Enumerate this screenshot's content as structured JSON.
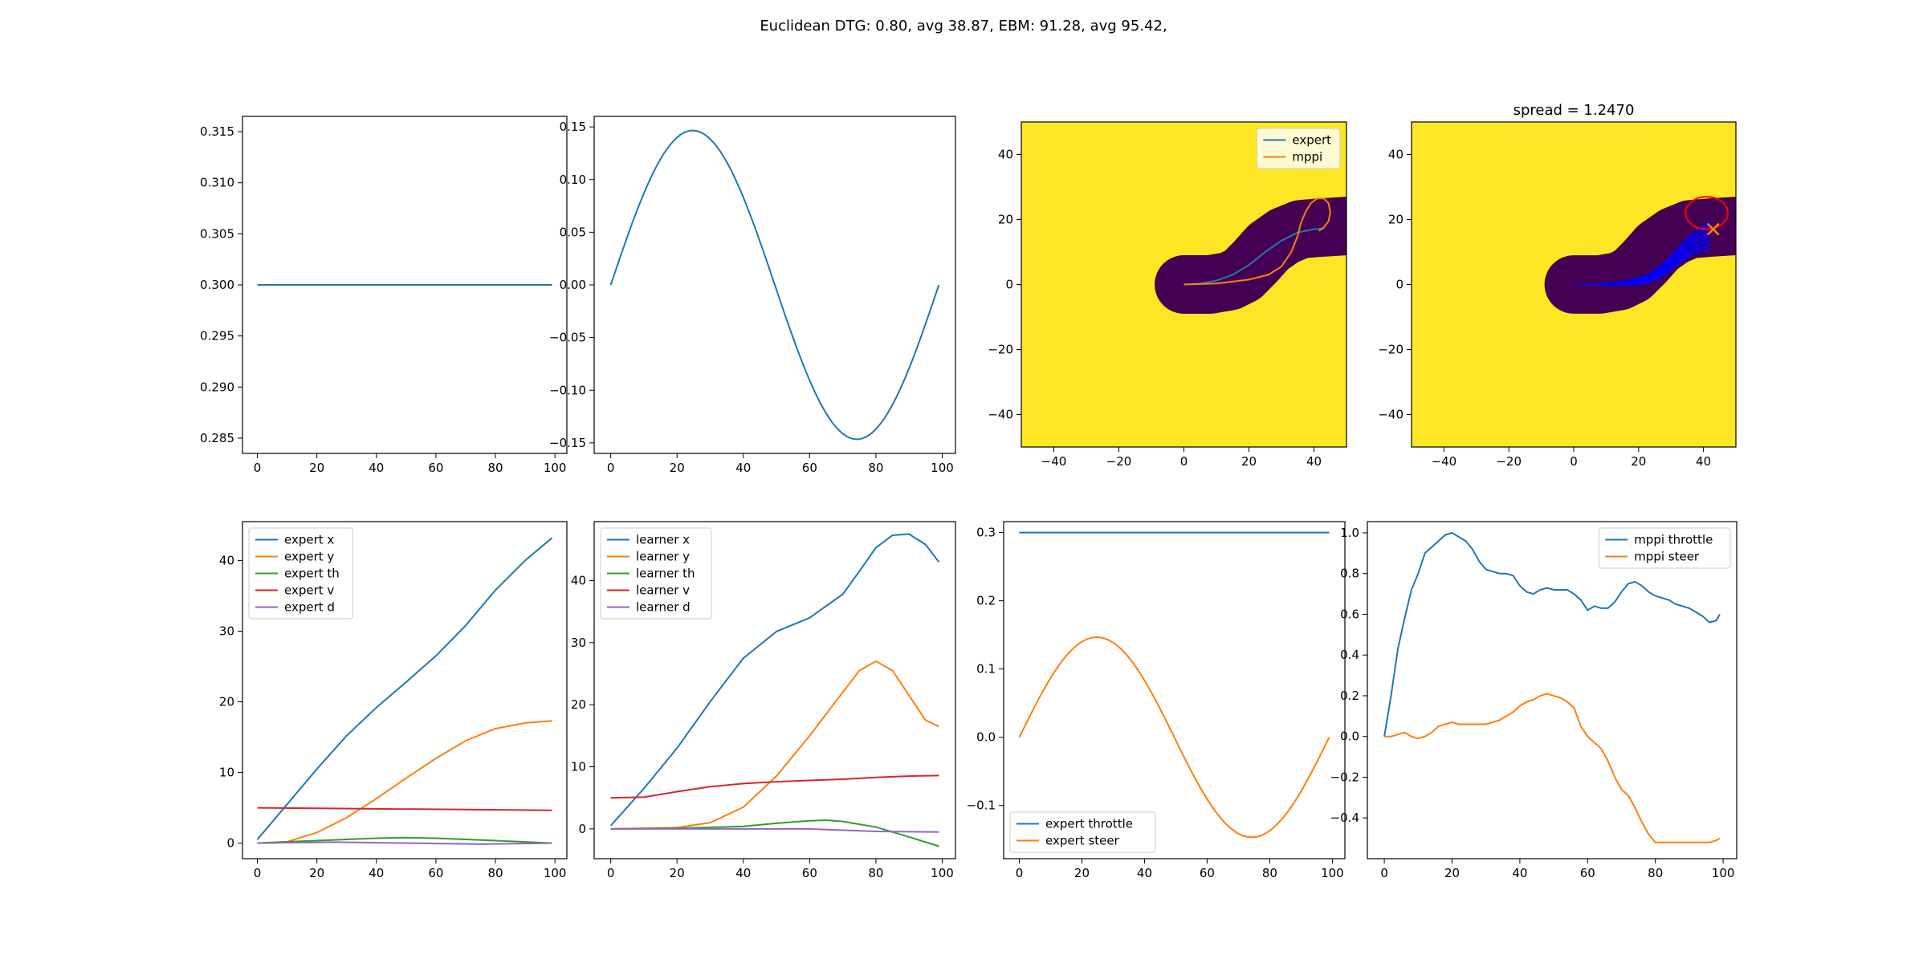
{
  "suptitle": "Euclidean DTG: 0.80, avg 38.87, EBM: 91.28, avg 95.42,",
  "colors": {
    "blue": "#1f77b4",
    "orange": "#ff7f0e",
    "green": "#2ca02c",
    "red": "#d62728",
    "purple": "#9467bd",
    "map_free": "#440154",
    "map_obstacle": "#fde725",
    "samples": "#0000ff",
    "ellipse": "#ff0000",
    "marker": "#ff7f0e"
  },
  "chart_data": [
    {
      "type": "line",
      "xlim": [
        -5,
        104
      ],
      "ylim": [
        0.2835,
        0.3165
      ],
      "xticks": [
        0,
        20,
        40,
        60,
        80,
        100
      ],
      "yticks": [
        0.285,
        0.29,
        0.295,
        0.3,
        0.305,
        0.31,
        0.315
      ],
      "ytick_labels": [
        "0.285",
        "0.290",
        "0.295",
        "0.300",
        "0.305",
        "0.310",
        "0.315"
      ],
      "series": [
        {
          "color": "blue",
          "x": [
            0,
            99
          ],
          "y": [
            0.3,
            0.3
          ]
        }
      ]
    },
    {
      "type": "line",
      "xlim": [
        -5,
        104
      ],
      "ylim": [
        -0.16,
        0.16
      ],
      "xticks": [
        0,
        20,
        40,
        60,
        80,
        100
      ],
      "yticks": [
        -0.15,
        -0.1,
        -0.05,
        0,
        0.05,
        0.1,
        0.15
      ],
      "ytick_labels": [
        "−0.15",
        "−0.10",
        "−0.05",
        "0.00",
        "0.05",
        "0.10",
        "0.15"
      ],
      "series": [
        {
          "color": "blue",
          "func": "sine",
          "amp": 0.1466,
          "n": 100
        }
      ]
    },
    {
      "type": "map",
      "xlim": [
        -50,
        50
      ],
      "ylim": [
        -50,
        50
      ],
      "xticks": [
        -40,
        -20,
        0,
        20,
        40
      ],
      "yticks": [
        -40,
        -20,
        0,
        20,
        40
      ],
      "legend": {
        "position": "upper right",
        "entries": [
          {
            "label": "expert",
            "color": "blue"
          },
          {
            "label": "mppi",
            "color": "orange"
          }
        ]
      },
      "series": [
        {
          "name": "expert",
          "color": "blue",
          "x": [
            0,
            5,
            10,
            15,
            20,
            25,
            30,
            35,
            40,
            43
          ],
          "y": [
            0,
            0.3,
            1.2,
            3,
            6,
            10,
            13.5,
            16,
            17,
            17.3
          ]
        },
        {
          "name": "mppi",
          "color": "orange",
          "x": [
            0,
            10,
            20,
            26,
            30,
            33,
            35,
            36,
            37.5,
            39,
            41,
            43,
            44.5,
            45,
            44.5,
            43,
            41.5
          ],
          "y": [
            0,
            0.3,
            1.5,
            3,
            5.5,
            10,
            15,
            19,
            22.5,
            25,
            26.5,
            26.5,
            25,
            22,
            19.5,
            17.5,
            16.5
          ]
        }
      ]
    },
    {
      "type": "map",
      "title": "spread = 1.2470",
      "xlim": [
        -50,
        50
      ],
      "ylim": [
        -50,
        50
      ],
      "xticks": [
        -40,
        -20,
        0,
        20,
        40
      ],
      "yticks": [
        -40,
        -20,
        0,
        20,
        40
      ],
      "marker": {
        "x": 43,
        "y": 17
      },
      "ellipse": {
        "cx": 41,
        "cy": 22,
        "rx": 6.5,
        "ry": 5
      },
      "samples": {
        "count": 40
      }
    },
    {
      "type": "line",
      "xlim": [
        -5,
        104
      ],
      "ylim": [
        -2.2,
        45.5
      ],
      "xticks": [
        0,
        20,
        40,
        60,
        80,
        100
      ],
      "yticks": [
        0,
        10,
        20,
        30,
        40
      ],
      "legend": {
        "position": "upper left",
        "entries": [
          {
            "label": "expert x",
            "color": "blue"
          },
          {
            "label": "expert y",
            "color": "orange"
          },
          {
            "label": "expert th",
            "color": "green"
          },
          {
            "label": "expert v",
            "color": "red"
          },
          {
            "label": "expert d",
            "color": "purple"
          }
        ]
      },
      "series": [
        {
          "name": "expert x",
          "color": "blue",
          "x": [
            0,
            10,
            20,
            30,
            40,
            50,
            60,
            70,
            80,
            90,
            99
          ],
          "y": [
            0.5,
            5.5,
            10.5,
            15.2,
            19.2,
            22.8,
            26.5,
            30.8,
            35.8,
            40,
            43.2
          ]
        },
        {
          "name": "expert y",
          "color": "orange",
          "x": [
            0,
            10,
            20,
            30,
            40,
            50,
            60,
            70,
            80,
            90,
            99
          ],
          "y": [
            0,
            0.2,
            1.5,
            3.6,
            6.3,
            9.2,
            12,
            14.5,
            16.2,
            17,
            17.3
          ]
        },
        {
          "name": "expert th",
          "color": "green",
          "x": [
            0,
            20,
            40,
            50,
            60,
            80,
            99
          ],
          "y": [
            0,
            0.35,
            0.7,
            0.78,
            0.7,
            0.35,
            0
          ]
        },
        {
          "name": "expert v",
          "color": "red",
          "x": [
            0,
            99
          ],
          "y": [
            5,
            4.65
          ]
        },
        {
          "name": "expert d",
          "color": "purple",
          "x": [
            0,
            25,
            50,
            75,
            99
          ],
          "y": [
            0,
            0.14,
            0,
            -0.14,
            0
          ]
        }
      ]
    },
    {
      "type": "line",
      "xlim": [
        -5,
        104
      ],
      "ylim": [
        -4.8,
        49.5
      ],
      "xticks": [
        0,
        20,
        40,
        60,
        80,
        100
      ],
      "yticks": [
        0,
        10,
        20,
        30,
        40
      ],
      "legend": {
        "position": "upper left",
        "entries": [
          {
            "label": "learner x",
            "color": "blue"
          },
          {
            "label": "learner y",
            "color": "orange"
          },
          {
            "label": "learner th",
            "color": "green"
          },
          {
            "label": "learner v",
            "color": "red"
          },
          {
            "label": "learner d",
            "color": "purple"
          }
        ]
      },
      "series": [
        {
          "name": "learner x",
          "color": "blue",
          "x": [
            0,
            10,
            20,
            30,
            40,
            50,
            60,
            70,
            75,
            80,
            85,
            90,
            95,
            99
          ],
          "y": [
            0.5,
            6.5,
            13,
            20.5,
            27.5,
            31.8,
            34,
            37.8,
            41.5,
            45.3,
            47.3,
            47.5,
            45.8,
            43
          ]
        },
        {
          "name": "learner y",
          "color": "orange",
          "x": [
            0,
            20,
            30,
            40,
            50,
            60,
            70,
            75,
            80,
            85,
            90,
            95,
            99
          ],
          "y": [
            0,
            0.2,
            1,
            3.5,
            8.5,
            15,
            22,
            25.5,
            27,
            25.5,
            21.5,
            17.5,
            16.5
          ]
        },
        {
          "name": "learner th",
          "color": "green",
          "x": [
            0,
            20,
            40,
            50,
            60,
            65,
            70,
            80,
            90,
            99
          ],
          "y": [
            0,
            0.1,
            0.4,
            0.9,
            1.3,
            1.4,
            1.2,
            0.3,
            -1.3,
            -2.8
          ]
        },
        {
          "name": "learner v",
          "color": "red",
          "x": [
            0,
            10,
            20,
            30,
            40,
            50,
            60,
            70,
            80,
            90,
            99
          ],
          "y": [
            5,
            5.1,
            6,
            6.8,
            7.3,
            7.6,
            7.8,
            8,
            8.3,
            8.5,
            8.6
          ]
        },
        {
          "name": "learner d",
          "color": "purple",
          "x": [
            0,
            30,
            60,
            80,
            99
          ],
          "y": [
            0,
            0,
            0,
            -0.4,
            -0.5
          ]
        }
      ]
    },
    {
      "type": "line",
      "xlim": [
        -5,
        104
      ],
      "ylim": [
        -0.178,
        0.316
      ],
      "xticks": [
        0,
        20,
        40,
        60,
        80,
        100
      ],
      "yticks": [
        -0.1,
        0,
        0.1,
        0.2,
        0.3
      ],
      "ytick_labels": [
        "−0.1",
        "0.0",
        "0.1",
        "0.2",
        "0.3"
      ],
      "legend": {
        "position": "lower left",
        "entries": [
          {
            "label": "expert throttle",
            "color": "blue"
          },
          {
            "label": "expert steer",
            "color": "orange"
          }
        ]
      },
      "series": [
        {
          "name": "expert throttle",
          "color": "blue",
          "x": [
            0,
            99
          ],
          "y": [
            0.3,
            0.3
          ]
        },
        {
          "name": "expert steer",
          "color": "orange",
          "func": "sine",
          "amp": 0.1466,
          "n": 100
        }
      ]
    },
    {
      "type": "line",
      "xlim": [
        -5,
        104
      ],
      "ylim": [
        -0.6,
        1.055
      ],
      "xticks": [
        0,
        20,
        40,
        60,
        80,
        100
      ],
      "yticks": [
        -0.4,
        -0.2,
        0,
        0.2,
        0.4,
        0.6,
        0.8,
        1.0
      ],
      "ytick_labels": [
        "−0.4",
        "−0.2",
        "0.0",
        "0.2",
        "0.4",
        "0.6",
        "0.8",
        "1.0"
      ],
      "legend": {
        "position": "upper right",
        "entries": [
          {
            "label": "mppi throttle",
            "color": "blue"
          },
          {
            "label": "mppi steer",
            "color": "orange"
          }
        ]
      },
      "series": [
        {
          "name": "mppi throttle",
          "color": "blue",
          "x": [
            0,
            2,
            4,
            6,
            8,
            10,
            12,
            14,
            16,
            18,
            20,
            22,
            24,
            26,
            28,
            30,
            32,
            34,
            36,
            38,
            40,
            42,
            44,
            46,
            48,
            50,
            52,
            54,
            56,
            58,
            60,
            62,
            64,
            66,
            68,
            70,
            72,
            74,
            76,
            78,
            80,
            82,
            84,
            86,
            88,
            90,
            92,
            94,
            96,
            98,
            99
          ],
          "y": [
            0,
            0.2,
            0.43,
            0.58,
            0.72,
            0.8,
            0.9,
            0.93,
            0.96,
            0.99,
            1.0,
            0.98,
            0.96,
            0.92,
            0.86,
            0.82,
            0.81,
            0.8,
            0.8,
            0.79,
            0.74,
            0.71,
            0.7,
            0.72,
            0.73,
            0.72,
            0.72,
            0.72,
            0.7,
            0.67,
            0.62,
            0.64,
            0.63,
            0.63,
            0.66,
            0.71,
            0.75,
            0.76,
            0.74,
            0.71,
            0.69,
            0.68,
            0.67,
            0.65,
            0.64,
            0.63,
            0.61,
            0.59,
            0.56,
            0.57,
            0.6
          ]
        },
        {
          "name": "mppi steer",
          "color": "orange",
          "x": [
            0,
            2,
            4,
            6,
            8,
            10,
            12,
            14,
            16,
            18,
            20,
            22,
            24,
            26,
            28,
            30,
            32,
            34,
            36,
            38,
            40,
            42,
            44,
            46,
            48,
            50,
            52,
            54,
            56,
            58,
            60,
            62,
            64,
            66,
            68,
            70,
            72,
            74,
            76,
            78,
            80,
            82,
            84,
            86,
            88,
            90,
            92,
            94,
            96,
            98,
            99
          ],
          "y": [
            0,
            0,
            0.01,
            0.02,
            0,
            -0.01,
            0.0,
            0.02,
            0.05,
            0.06,
            0.07,
            0.06,
            0.06,
            0.06,
            0.06,
            0.06,
            0.07,
            0.08,
            0.1,
            0.12,
            0.15,
            0.17,
            0.18,
            0.2,
            0.21,
            0.2,
            0.19,
            0.17,
            0.14,
            0.05,
            0.0,
            -0.03,
            -0.06,
            -0.12,
            -0.2,
            -0.26,
            -0.29,
            -0.35,
            -0.42,
            -0.48,
            -0.52,
            -0.52,
            -0.52,
            -0.52,
            -0.52,
            -0.52,
            -0.52,
            -0.52,
            -0.52,
            -0.51,
            -0.5
          ]
        }
      ]
    }
  ]
}
